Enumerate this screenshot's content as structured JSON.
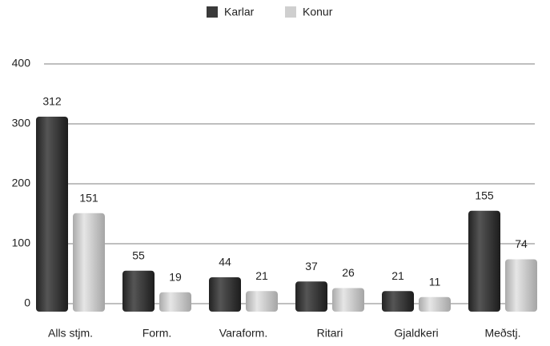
{
  "chart_data": {
    "type": "bar",
    "categories": [
      "Alls stjm.",
      "Form.",
      "Varaform.",
      "Ritari",
      "Gjaldkeri",
      "Meðstj."
    ],
    "series": [
      {
        "name": "Karlar",
        "color": "#3a3a3a",
        "values": [
          312,
          55,
          44,
          37,
          21,
          155
        ]
      },
      {
        "name": "Konur",
        "color": "#cfcfcf",
        "values": [
          151,
          19,
          21,
          26,
          11,
          74
        ]
      }
    ],
    "ylim": [
      0,
      400
    ],
    "yticks": [
      0,
      100,
      200,
      300,
      400
    ],
    "grid": true,
    "legend": "top"
  }
}
